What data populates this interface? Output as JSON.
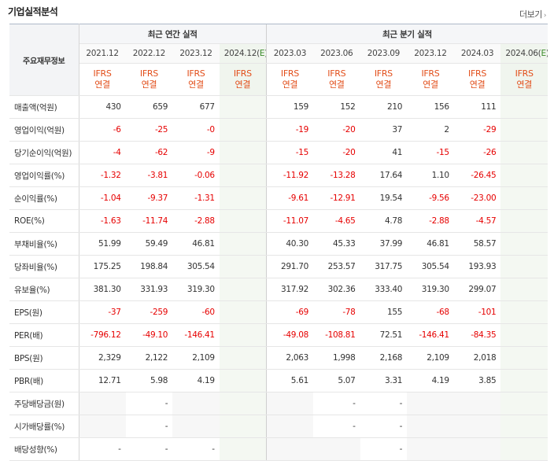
{
  "title": "기업실적분석",
  "more_label": "더보기",
  "header": {
    "row_head": "주요재무정보",
    "annual_group": "최근 연간 실적",
    "quarter_group": "최근 분기 실적",
    "annual_periods": [
      "2021.12",
      "2022.12",
      "2023.12",
      "2024.12(E)"
    ],
    "quarter_periods": [
      "2023.03",
      "2023.06",
      "2023.09",
      "2023.12",
      "2024.03",
      "2024.06(E)"
    ],
    "ifrs_top": "IFRS",
    "ifrs_bottom": "연결"
  },
  "rows": [
    {
      "label": "매출액(억원)",
      "values": [
        "430",
        "659",
        "677",
        "",
        "159",
        "152",
        "210",
        "156",
        "111",
        ""
      ]
    },
    {
      "label": "영업이익(억원)",
      "values": [
        "-6",
        "-25",
        "-0",
        "",
        "-19",
        "-20",
        "37",
        "2",
        "-29",
        ""
      ]
    },
    {
      "label": "당기순이익(억원)",
      "values": [
        "-4",
        "-62",
        "-9",
        "",
        "-15",
        "-20",
        "41",
        "-15",
        "-26",
        ""
      ]
    },
    {
      "label": "영업이익률(%)",
      "values": [
        "-1.32",
        "-3.81",
        "-0.06",
        "",
        "-11.92",
        "-13.28",
        "17.64",
        "1.10",
        "-26.45",
        ""
      ]
    },
    {
      "label": "순이익률(%)",
      "values": [
        "-1.04",
        "-9.37",
        "-1.31",
        "",
        "-9.61",
        "-12.91",
        "19.54",
        "-9.56",
        "-23.00",
        ""
      ]
    },
    {
      "label": "ROE(%)",
      "values": [
        "-1.63",
        "-11.74",
        "-2.88",
        "",
        "-11.07",
        "-4.65",
        "4.78",
        "-2.88",
        "-4.57",
        ""
      ]
    },
    {
      "label": "부채비율(%)",
      "values": [
        "51.99",
        "59.49",
        "46.81",
        "",
        "40.30",
        "45.33",
        "37.99",
        "46.81",
        "58.57",
        ""
      ]
    },
    {
      "label": "당좌비율(%)",
      "values": [
        "175.25",
        "198.84",
        "305.54",
        "",
        "291.70",
        "253.57",
        "317.75",
        "305.54",
        "193.93",
        ""
      ]
    },
    {
      "label": "유보율(%)",
      "values": [
        "381.30",
        "331.93",
        "319.30",
        "",
        "317.92",
        "302.36",
        "333.40",
        "319.30",
        "299.07",
        ""
      ]
    },
    {
      "label": "EPS(원)",
      "values": [
        "-37",
        "-259",
        "-60",
        "",
        "-69",
        "-78",
        "155",
        "-68",
        "-101",
        ""
      ]
    },
    {
      "label": "PER(배)",
      "values": [
        "-796.12",
        "-49.10",
        "-146.41",
        "",
        "-49.08",
        "-108.81",
        "72.51",
        "-146.41",
        "-84.35",
        ""
      ]
    },
    {
      "label": "BPS(원)",
      "values": [
        "2,329",
        "2,122",
        "2,109",
        "",
        "2,063",
        "1,998",
        "2,168",
        "2,109",
        "2,018",
        ""
      ]
    },
    {
      "label": "PBR(배)",
      "values": [
        "12.71",
        "5.98",
        "4.19",
        "",
        "5.61",
        "5.07",
        "3.31",
        "4.19",
        "3.85",
        ""
      ]
    },
    {
      "label": "주당배당금(원)",
      "values": [
        "",
        "-",
        "",
        "",
        "",
        "-",
        "-",
        "",
        "",
        ""
      ]
    },
    {
      "label": "시가배당률(%)",
      "values": [
        "",
        "-",
        "",
        "",
        "",
        "-",
        "-",
        "",
        "",
        ""
      ]
    },
    {
      "label": "배당성향(%)",
      "values": [
        "-",
        "-",
        "-",
        "",
        "",
        "",
        "-",
        "",
        "",
        ""
      ]
    }
  ]
}
